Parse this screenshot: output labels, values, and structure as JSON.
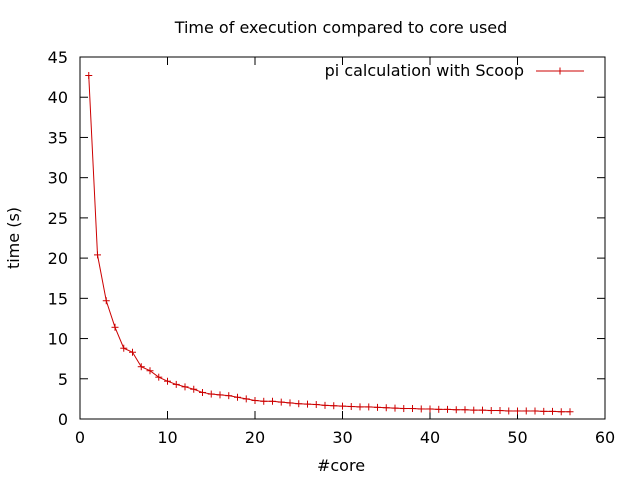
{
  "chart_data": {
    "type": "line",
    "title": "Time of execution compared to core used",
    "xlabel": "#core",
    "ylabel": "time (s)",
    "xlim": [
      0,
      60
    ],
    "ylim": [
      0,
      45
    ],
    "x_ticks": [
      "0",
      "10",
      "20",
      "30",
      "40",
      "50",
      "60"
    ],
    "y_ticks": [
      "0",
      "5",
      "10",
      "15",
      "20",
      "25",
      "30",
      "35",
      "40",
      "45"
    ],
    "grid": false,
    "legend_position": "top-right",
    "series": [
      {
        "name": "pi calculation with Scoop",
        "color": "#cc0000",
        "marker": "plus",
        "x": [
          1,
          2,
          3,
          4,
          5,
          6,
          7,
          8,
          9,
          10,
          11,
          12,
          13,
          14,
          15,
          16,
          17,
          18,
          19,
          20,
          21,
          22,
          23,
          24,
          25,
          26,
          27,
          28,
          29,
          30,
          31,
          32,
          33,
          34,
          35,
          36,
          37,
          38,
          39,
          40,
          41,
          42,
          43,
          44,
          45,
          46,
          47,
          48,
          49,
          50,
          51,
          52,
          53,
          54,
          55,
          56
        ],
        "y": [
          42.7,
          20.4,
          14.7,
          11.4,
          8.8,
          8.3,
          6.5,
          6.0,
          5.2,
          4.7,
          4.3,
          4.0,
          3.7,
          3.3,
          3.1,
          3.0,
          2.9,
          2.7,
          2.5,
          2.3,
          2.2,
          2.2,
          2.1,
          2.0,
          1.9,
          1.85,
          1.8,
          1.7,
          1.65,
          1.6,
          1.55,
          1.5,
          1.5,
          1.45,
          1.4,
          1.35,
          1.3,
          1.3,
          1.25,
          1.25,
          1.2,
          1.2,
          1.15,
          1.15,
          1.1,
          1.1,
          1.05,
          1.05,
          1.0,
          1.0,
          1.0,
          1.0,
          0.95,
          0.95,
          0.9,
          0.9
        ]
      }
    ]
  }
}
